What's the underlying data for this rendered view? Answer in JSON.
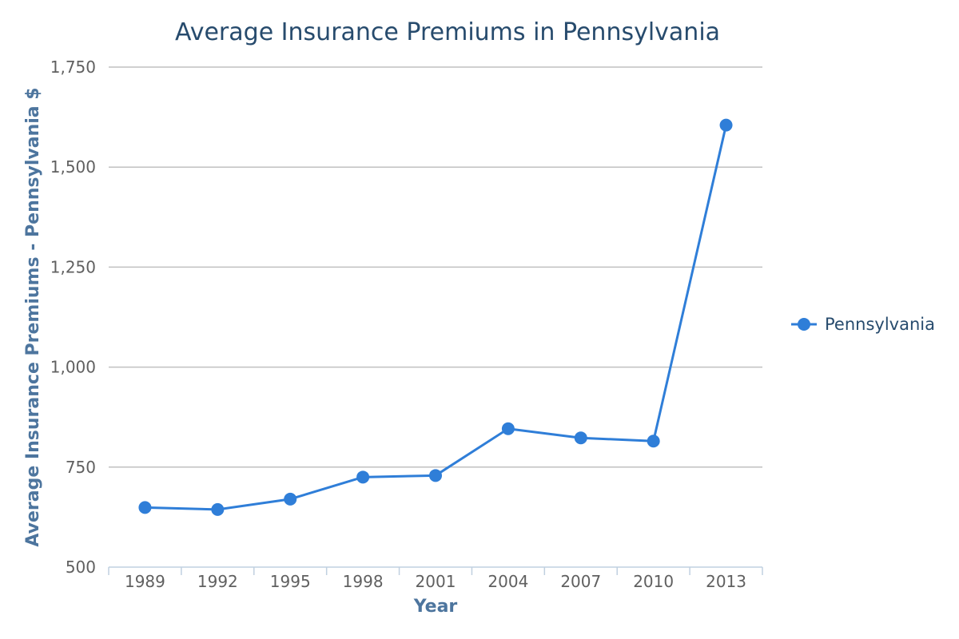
{
  "chart_data": {
    "type": "line",
    "title": "Average Insurance Premiums in Pennsylvania",
    "xlabel": "Year",
    "ylabel": "Average Insurance Premiums - Pennsylvania $",
    "categories": [
      "1989",
      "1992",
      "1995",
      "1998",
      "2001",
      "2004",
      "2007",
      "2010",
      "2013"
    ],
    "series": [
      {
        "name": "Pennsylvania",
        "color": "#2f7ed8",
        "values": [
          649,
          644,
          670,
          725,
          729,
          846,
          823,
          815,
          1605
        ]
      }
    ],
    "ylim": [
      500,
      1750
    ],
    "yticks": [
      500,
      750,
      1000,
      1250,
      1500,
      1750
    ],
    "ytick_labels": [
      "500",
      "750",
      "1,000",
      "1,250",
      "1,500",
      "1,750"
    ],
    "grid": true,
    "legend_position": "right"
  }
}
